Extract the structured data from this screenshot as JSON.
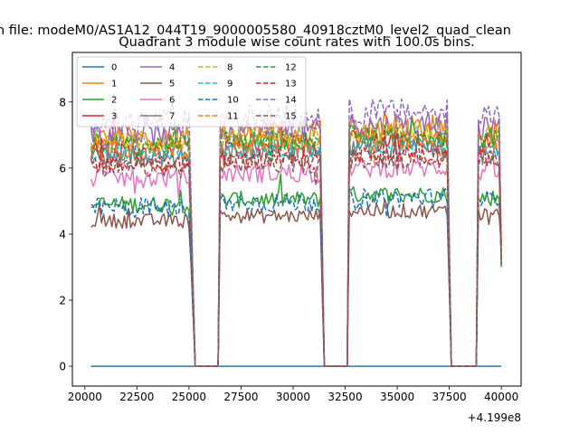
{
  "figure": {
    "suptitle": "n file: modeM0/AS1A12_044T19_9000005580_40918cztM0_level2_quad_clean",
    "title": "Quadrant 3 module wise count rates with 100.0s bins."
  },
  "chart_data": {
    "type": "line",
    "title": "Quadrant 3 module wise count rates with 100.0s bins.",
    "xlabel": "",
    "ylabel": "",
    "x_offset_label": "+4.199e8",
    "xlim": [
      19400,
      40950
    ],
    "ylim": [
      -0.6,
      9.5
    ],
    "x_ticks": [
      20000,
      22500,
      25000,
      27500,
      30000,
      32500,
      35000,
      37500,
      40000
    ],
    "x_tick_labels": [
      "20000",
      "22500",
      "25000",
      "27500",
      "30000",
      "32500",
      "35000",
      "37500",
      "40000"
    ],
    "y_ticks": [
      0,
      2,
      4,
      6,
      8
    ],
    "y_tick_labels": [
      "0",
      "2",
      "4",
      "6",
      "8"
    ],
    "grid": false,
    "legend_placement": "top-left",
    "x_start": 20300,
    "x_end": 40000,
    "x_step": 100,
    "gaps": [
      {
        "fall_start": 25000,
        "fall_end": 25300,
        "zero_until": 26400,
        "rise_end": 26500
      },
      {
        "fall_start": 31300,
        "fall_end": 31500,
        "zero_until": 32600,
        "rise_end": 32700
      },
      {
        "fall_start": 37400,
        "fall_end": 37600,
        "zero_until": 38800,
        "rise_end": 38900
      }
    ],
    "end_drop": {
      "from_x": 39800,
      "value": 3.0
    },
    "series": [
      {
        "name": "0",
        "color": "#1f77b4",
        "dash": "solid",
        "flat": true,
        "base": 0.0,
        "noise": 0.0
      },
      {
        "name": "1",
        "color": "#ff7f0e",
        "dash": "solid",
        "base": 6.9,
        "noise": 0.4
      },
      {
        "name": "2",
        "color": "#2ca02c",
        "dash": "solid",
        "base": 4.9,
        "noise": 0.25
      },
      {
        "name": "3",
        "color": "#d62728",
        "dash": "solid",
        "base": 6.5,
        "noise": 0.35
      },
      {
        "name": "4",
        "color": "#9467bd",
        "dash": "solid",
        "base": 7.0,
        "noise": 0.35
      },
      {
        "name": "5",
        "color": "#8c564b",
        "dash": "solid",
        "base": 4.4,
        "noise": 0.22
      },
      {
        "name": "6",
        "color": "#e377c2",
        "dash": "solid",
        "base": 5.7,
        "noise": 0.3
      },
      {
        "name": "7",
        "color": "#7f7f7f",
        "dash": "solid",
        "base": 6.3,
        "noise": 0.3
      },
      {
        "name": "8",
        "color": "#bcbd22",
        "dash": "dashed",
        "base": 6.8,
        "noise": 0.35
      },
      {
        "name": "9",
        "color": "#17becf",
        "dash": "dashed",
        "base": 6.4,
        "noise": 0.3
      },
      {
        "name": "10",
        "color": "#1f77b4",
        "dash": "dashed",
        "base": 4.8,
        "noise": 0.3
      },
      {
        "name": "11",
        "color": "#ff7f0e",
        "dash": "dashed",
        "base": 6.6,
        "noise": 0.3
      },
      {
        "name": "12",
        "color": "#2ca02c",
        "dash": "dashed",
        "base": 6.7,
        "noise": 0.3
      },
      {
        "name": "13",
        "color": "#d62728",
        "dash": "dashed",
        "base": 6.1,
        "noise": 0.25
      },
      {
        "name": "14",
        "color": "#9467bd",
        "dash": "dashed",
        "base": 7.4,
        "noise": 0.4
      },
      {
        "name": "15",
        "color": "#8c564b",
        "dash": "dashed",
        "base": 6.0,
        "noise": 0.3
      }
    ]
  }
}
